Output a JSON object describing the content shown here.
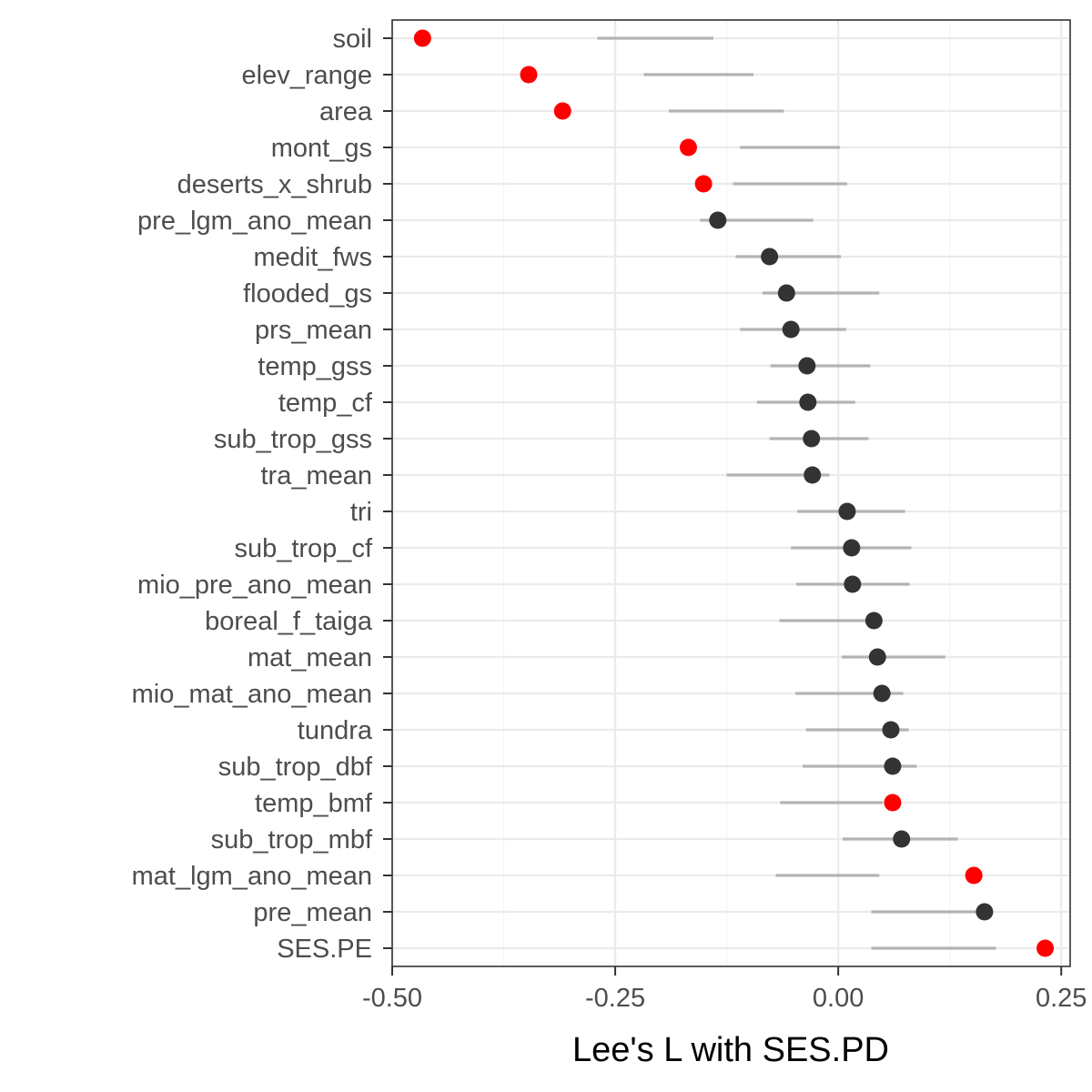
{
  "chart_data": {
    "type": "scatter",
    "xlabel": "Lee's L with SES.PD",
    "ylabel": "",
    "xlim": [
      -0.5,
      0.26
    ],
    "x_ticks": [
      -0.5,
      -0.25,
      0.0,
      0.25
    ],
    "x_tick_labels": [
      "-0.50",
      "-0.25",
      "0.00",
      "0.25"
    ],
    "grid": true,
    "legend": "none",
    "colors": {
      "significant": "#ff0000",
      "not_significant": "#333333",
      "interval": "#b3b3b3",
      "grid_major": "#ebebeb",
      "grid_minor": "#f5f5f5",
      "panel_border": "#333333"
    },
    "series": [
      {
        "label": "soil",
        "value": -0.466,
        "lower": -0.27,
        "upper": -0.14,
        "significant": true
      },
      {
        "label": "elev_range",
        "value": -0.347,
        "lower": -0.218,
        "upper": -0.095,
        "significant": true
      },
      {
        "label": "area",
        "value": -0.309,
        "lower": -0.19,
        "upper": -0.061,
        "significant": true
      },
      {
        "label": "mont_gs",
        "value": -0.168,
        "lower": -0.11,
        "upper": 0.002,
        "significant": true
      },
      {
        "label": "deserts_x_shrub",
        "value": -0.151,
        "lower": -0.118,
        "upper": 0.01,
        "significant": true
      },
      {
        "label": "pre_lgm_ano_mean",
        "value": -0.135,
        "lower": -0.155,
        "upper": -0.028,
        "significant": false
      },
      {
        "label": "medit_fws",
        "value": -0.077,
        "lower": -0.115,
        "upper": 0.003,
        "significant": false
      },
      {
        "label": "flooded_gs",
        "value": -0.058,
        "lower": -0.085,
        "upper": 0.046,
        "significant": false
      },
      {
        "label": "prs_mean",
        "value": -0.053,
        "lower": -0.11,
        "upper": 0.009,
        "significant": false
      },
      {
        "label": "temp_gss",
        "value": -0.035,
        "lower": -0.076,
        "upper": 0.036,
        "significant": false
      },
      {
        "label": "temp_cf",
        "value": -0.034,
        "lower": -0.091,
        "upper": 0.019,
        "significant": false
      },
      {
        "label": "sub_trop_gss",
        "value": -0.03,
        "lower": -0.077,
        "upper": 0.034,
        "significant": false
      },
      {
        "label": "tra_mean",
        "value": -0.029,
        "lower": -0.125,
        "upper": -0.01,
        "significant": false
      },
      {
        "label": "tri",
        "value": 0.01,
        "lower": -0.046,
        "upper": 0.075,
        "significant": false
      },
      {
        "label": "sub_trop_cf",
        "value": 0.015,
        "lower": -0.053,
        "upper": 0.082,
        "significant": false
      },
      {
        "label": "mio_pre_ano_mean",
        "value": 0.016,
        "lower": -0.047,
        "upper": 0.08,
        "significant": false
      },
      {
        "label": "boreal_f_taiga",
        "value": 0.04,
        "lower": -0.066,
        "upper": 0.044,
        "significant": false
      },
      {
        "label": "mat_mean",
        "value": 0.044,
        "lower": 0.004,
        "upper": 0.12,
        "significant": false
      },
      {
        "label": "mio_mat_ano_mean",
        "value": 0.049,
        "lower": -0.048,
        "upper": 0.073,
        "significant": false
      },
      {
        "label": "tundra",
        "value": 0.059,
        "lower": -0.036,
        "upper": 0.079,
        "significant": false
      },
      {
        "label": "sub_trop_dbf",
        "value": 0.061,
        "lower": -0.04,
        "upper": 0.088,
        "significant": false
      },
      {
        "label": "temp_bmf",
        "value": 0.061,
        "lower": -0.065,
        "upper": 0.05,
        "significant": true
      },
      {
        "label": "sub_trop_mbf",
        "value": 0.071,
        "lower": 0.005,
        "upper": 0.134,
        "significant": false
      },
      {
        "label": "mat_lgm_ano_mean",
        "value": 0.152,
        "lower": -0.07,
        "upper": 0.046,
        "significant": true
      },
      {
        "label": "pre_mean",
        "value": 0.164,
        "lower": 0.037,
        "upper": 0.165,
        "significant": false
      },
      {
        "label": "SES.PE",
        "value": 0.232,
        "lower": 0.037,
        "upper": 0.177,
        "significant": true
      }
    ]
  }
}
